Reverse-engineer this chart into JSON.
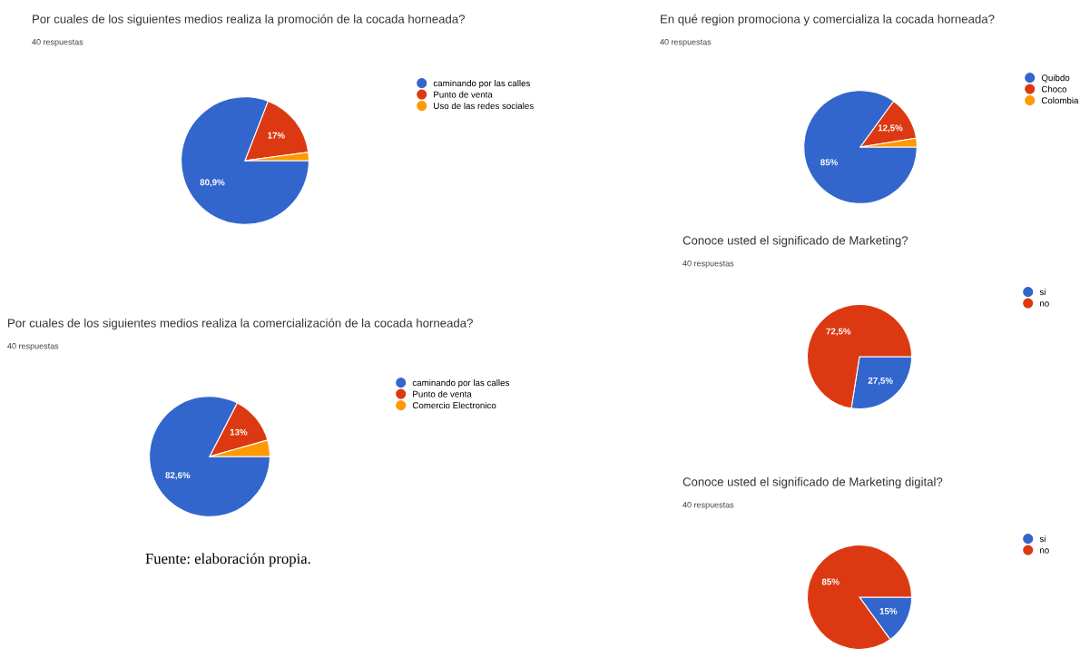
{
  "chart_data": [
    {
      "type": "pie",
      "title": "Por cuales de los siguientes medios realiza la promoción de la cocada horneada?",
      "subtitle": "40 respuestas",
      "categories": [
        "caminando por las calles",
        "Punto de venta",
        "Uso de las redes sociales"
      ],
      "values": [
        80.9,
        17,
        2.1
      ],
      "colors": [
        "#3366cc",
        "#dc3912",
        "#ff9900"
      ],
      "value_labels": [
        "80,9%",
        "17%",
        null
      ],
      "legend": "right"
    },
    {
      "type": "pie",
      "title": "En qué region promociona y comercializa la cocada horneada?",
      "subtitle": "40 respuestas",
      "categories": [
        "Quibdo",
        "Choco",
        "Colombia"
      ],
      "values": [
        85,
        12.5,
        2.5
      ],
      "colors": [
        "#3366cc",
        "#dc3912",
        "#ff9900"
      ],
      "value_labels": [
        "85%",
        "12,5%",
        null
      ],
      "legend": "right"
    },
    {
      "type": "pie",
      "title": "Conoce usted el significado de Marketing?",
      "subtitle": "40 respuestas",
      "categories": [
        "si",
        "no"
      ],
      "values": [
        27.5,
        72.5
      ],
      "colors": [
        "#3366cc",
        "#dc3912"
      ],
      "value_labels": [
        "27,5%",
        "72,5%"
      ],
      "legend": "right"
    },
    {
      "type": "pie",
      "title": "Por cuales de los siguientes medios realiza la comercialización de la cocada horneada?",
      "subtitle": "40 respuestas",
      "categories": [
        "caminando por las calles",
        "Punto de venta",
        "Comercio Electronico"
      ],
      "values": [
        82.6,
        13,
        4.4
      ],
      "colors": [
        "#3366cc",
        "#dc3912",
        "#ff9900"
      ],
      "value_labels": [
        "82,6%",
        "13%",
        null
      ],
      "legend": "right",
      "annotations": [
        "Fuente: elaboración propia."
      ]
    },
    {
      "type": "pie",
      "title": "Conoce usted el significado de Marketing digital?",
      "subtitle": "40 respuestas",
      "categories": [
        "si",
        "no"
      ],
      "values": [
        15,
        85
      ],
      "colors": [
        "#3366cc",
        "#dc3912"
      ],
      "value_labels": [
        "15%",
        "85%"
      ],
      "legend": "right"
    }
  ]
}
